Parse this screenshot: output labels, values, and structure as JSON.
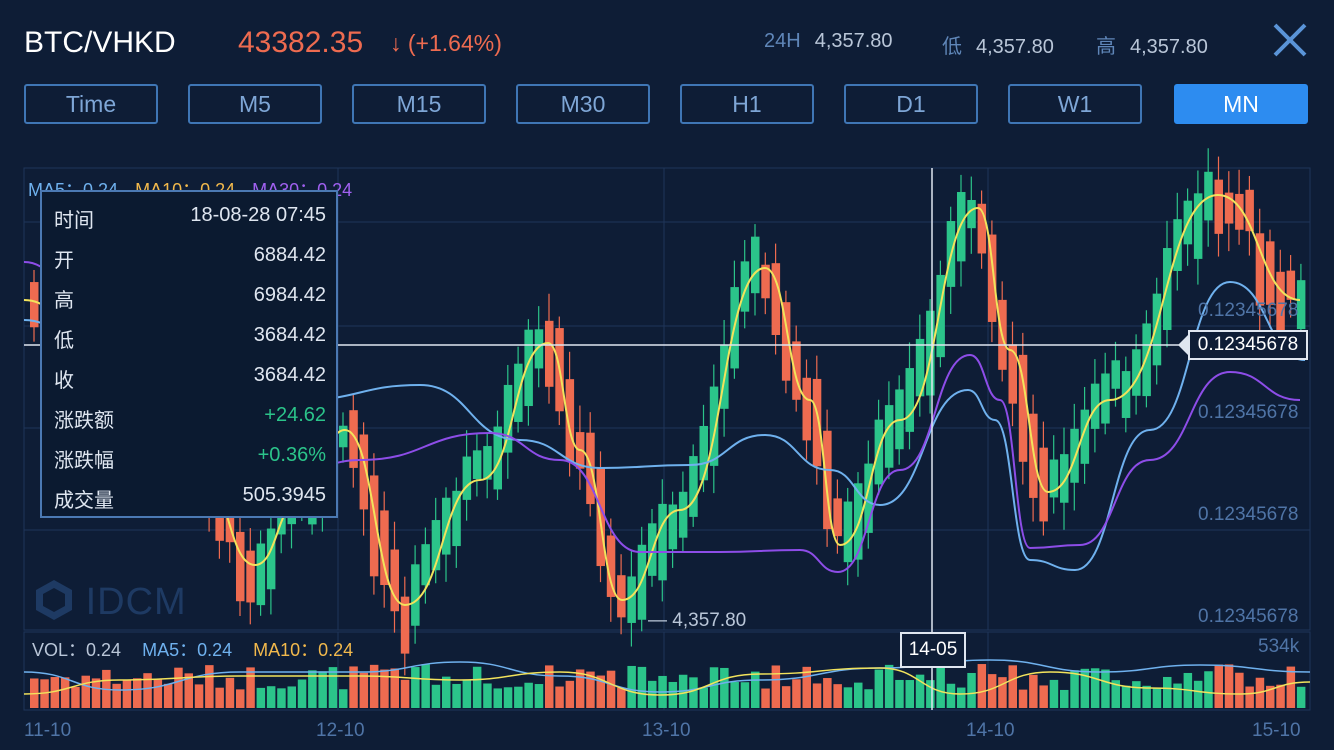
{
  "header": {
    "pair": "BTC/VHKD",
    "price": "43382.35",
    "arrow": "↓",
    "change": "(+1.64%)",
    "stats": [
      {
        "label": "24H",
        "value": "4,357.80"
      },
      {
        "label": "低",
        "value": "4,357.80"
      },
      {
        "label": "高",
        "value": "4,357.80"
      }
    ]
  },
  "tabs": [
    {
      "label": "Time",
      "active": false
    },
    {
      "label": "M5",
      "active": false
    },
    {
      "label": "M15",
      "active": false
    },
    {
      "label": "M30",
      "active": false
    },
    {
      "label": "H1",
      "active": false
    },
    {
      "label": "D1",
      "active": false
    },
    {
      "label": "W1",
      "active": false
    },
    {
      "label": "MN",
      "active": true
    }
  ],
  "ma_legend": {
    "ma5": "MA5：0.24",
    "ma10": "MA10：0.24",
    "ma30": "MA30：0.24"
  },
  "tooltip": [
    {
      "k": "时间",
      "v": "18-08-28 07:45"
    },
    {
      "k": "开",
      "v": "6884.42"
    },
    {
      "k": "高",
      "v": "6984.42"
    },
    {
      "k": "低",
      "v": "3684.42"
    },
    {
      "k": "收",
      "v": "3684.42"
    },
    {
      "k": "涨跌额",
      "v": "+24.62"
    },
    {
      "k": "涨跌幅",
      "v": "+0.36%"
    },
    {
      "k": "成交量",
      "v": "505.3945"
    }
  ],
  "y_labels": [
    "0.12345678",
    "0.12345678",
    "0.12345678",
    "0.12345678"
  ],
  "cursor_price": "0.12345678",
  "cursor_time": "14-05",
  "min_price_label": "4,357.80",
  "vol_legend": {
    "vol": "VOL：0.24",
    "ma5": "MA5：0.24",
    "ma10": "MA10：0.24"
  },
  "vol_max": "534k",
  "x_labels": [
    "11-10",
    "12-10",
    "13-10",
    "14-10",
    "15-10"
  ],
  "watermark": "IDCM",
  "colors": {
    "up": "#2bc48a",
    "down": "#ee6b50",
    "ma5": "#6fb1ee",
    "ma10": "#f2e35c",
    "ma30": "#8d4de8",
    "accent": "#2d8cf0"
  }
}
